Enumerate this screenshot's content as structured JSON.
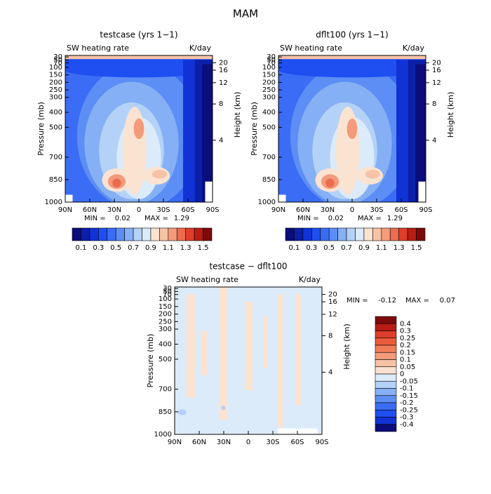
{
  "title": "MAM",
  "chart_data": [
    {
      "type": "contour",
      "title": "testcase (yrs 1−1)",
      "left_string": "SW heating rate",
      "right_string": "K/day",
      "ylabel": "Pressure (mb)",
      "y2label": "Height (km)",
      "xlim": [
        90,
        -90
      ],
      "xticks": [
        {
          "value": 90,
          "label": "90N"
        },
        {
          "value": 60,
          "label": "60N"
        },
        {
          "value": 30,
          "label": "30N"
        },
        0,
        {
          "value": -30,
          "label": "30S"
        },
        {
          "value": -60,
          "label": "60S"
        },
        {
          "value": -90,
          "label": "90S"
        }
      ],
      "ylim": [
        1000,
        20
      ],
      "yticks": [
        1000,
        850,
        700,
        500,
        400,
        300,
        250,
        200,
        150,
        100,
        70,
        50,
        30
      ],
      "y2ticks": [
        4,
        8,
        12,
        16,
        20
      ],
      "min_label": "MIN =",
      "min": 0.02,
      "max_label": "MAX =",
      "max": 1.29,
      "colorbar": {
        "orientation": "horizontal",
        "clim": [
          0,
          1.6
        ],
        "colors": [
          "#0a0d7a",
          "#0b1fa8",
          "#1133d6",
          "#1f4ff0",
          "#3b6cf5",
          "#5c8ef5",
          "#86b0f5",
          "#b4d2f7",
          "#dcebfa",
          "#fbe3d2",
          "#f7c3a6",
          "#f39b7a",
          "#ec6c4f",
          "#dd3d2a",
          "#b91c14",
          "#7d0a0a"
        ],
        "ticks": [
          0.1,
          0.3,
          0.5,
          0.7,
          0.9,
          1.1,
          1.3,
          1.5
        ]
      }
    },
    {
      "type": "contour",
      "title": "dflt100 (yrs 1−1)",
      "left_string": "SW heating rate",
      "right_string": "K/day",
      "ylabel": "Pressure (mb)",
      "y2label": "Height (km)",
      "xlim": [
        90,
        -90
      ],
      "xticks": [
        {
          "value": 90,
          "label": "90N"
        },
        {
          "value": 60,
          "label": "60N"
        },
        {
          "value": 30,
          "label": "30N"
        },
        0,
        {
          "value": -30,
          "label": "30S"
        },
        {
          "value": -60,
          "label": "60S"
        },
        {
          "value": -90,
          "label": "90S"
        }
      ],
      "ylim": [
        1000,
        20
      ],
      "yticks": [
        1000,
        850,
        700,
        500,
        400,
        300,
        250,
        200,
        150,
        100,
        70,
        50,
        30
      ],
      "y2ticks": [
        4,
        8,
        12,
        16,
        20
      ],
      "min_label": "MIN =",
      "min": 0.02,
      "max_label": "MAX =",
      "max": 1.29,
      "colorbar": {
        "orientation": "horizontal",
        "clim": [
          0,
          1.6
        ],
        "colors": [
          "#0a0d7a",
          "#0b1fa8",
          "#1133d6",
          "#1f4ff0",
          "#3b6cf5",
          "#5c8ef5",
          "#86b0f5",
          "#b4d2f7",
          "#dcebfa",
          "#fbe3d2",
          "#f7c3a6",
          "#f39b7a",
          "#ec6c4f",
          "#dd3d2a",
          "#b91c14",
          "#7d0a0a"
        ],
        "ticks": [
          0.1,
          0.3,
          0.5,
          0.7,
          0.9,
          1.1,
          1.3,
          1.5
        ]
      }
    },
    {
      "type": "contour-difference",
      "title": "testcase − dflt100",
      "left_string": "SW heating rate",
      "right_string": "K/day",
      "ylabel": "Pressure (mb)",
      "y2label": "Height (km)",
      "xlim": [
        90,
        -90
      ],
      "xticks": [
        {
          "value": 90,
          "label": "90N"
        },
        {
          "value": 60,
          "label": "60N"
        },
        {
          "value": 30,
          "label": "30N"
        },
        0,
        {
          "value": -30,
          "label": "30S"
        },
        {
          "value": -60,
          "label": "60S"
        },
        {
          "value": -90,
          "label": "90S"
        }
      ],
      "ylim": [
        1000,
        20
      ],
      "yticks": [
        1000,
        850,
        700,
        500,
        400,
        300,
        250,
        200,
        150,
        100,
        70,
        50,
        30
      ],
      "y2ticks": [
        4,
        8,
        12,
        16,
        20
      ],
      "min_label": "MIN =",
      "min": -0.12,
      "max_label": "MAX =",
      "max": 0.07,
      "colorbar": {
        "orientation": "vertical",
        "colors": [
          "#7d0a0a",
          "#b91c14",
          "#dd3d2a",
          "#ec5a3c",
          "#f07c5a",
          "#f39b7a",
          "#f7c3a6",
          "#fbe3d2",
          "#dcebfa",
          "#b4d2f7",
          "#86b0f5",
          "#5c8ef5",
          "#3b6cf5",
          "#1f4ff0",
          "#1133d6",
          "#0a0d7a"
        ],
        "ticks": [
          0.4,
          0.3,
          0.25,
          0.2,
          0.15,
          0.1,
          0.05,
          0,
          -0.05,
          -0.1,
          -0.15,
          -0.2,
          -0.25,
          -0.3,
          -0.4
        ]
      }
    }
  ]
}
